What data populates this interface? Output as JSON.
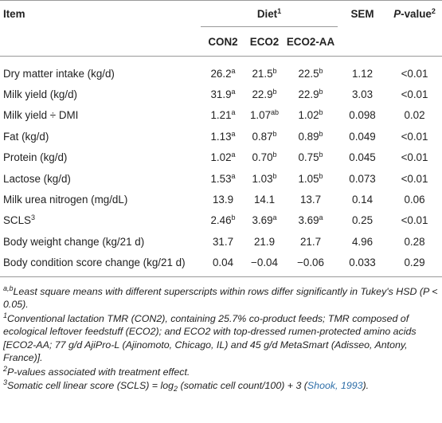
{
  "table": {
    "header": {
      "item": "Item",
      "diet": {
        "text": "Diet",
        "sup": "1"
      },
      "sem": "SEM",
      "pvalue": [
        {
          "text": "P",
          "kind": "italic"
        },
        {
          "text": "-value"
        },
        {
          "text": "2",
          "kind": "sup"
        }
      ],
      "diets": [
        "CON2",
        "ECO2",
        "ECO2-AA"
      ]
    },
    "rows": [
      [
        "Dry matter intake (kg/d)",
        {
          "text": "26.2",
          "sup": "a"
        },
        {
          "text": "21.5",
          "sup": "b"
        },
        {
          "text": "22.5",
          "sup": "b"
        },
        "1.12",
        "<0.01"
      ],
      [
        "Milk yield (kg/d)",
        {
          "text": "31.9",
          "sup": "a"
        },
        {
          "text": "22.9",
          "sup": "b"
        },
        {
          "text": "22.9",
          "sup": "b"
        },
        "3.03",
        "<0.01"
      ],
      [
        "Milk yield ÷ DMI",
        {
          "text": "1.21",
          "sup": "a"
        },
        {
          "text": "1.07",
          "sup": "ab"
        },
        {
          "text": "1.02",
          "sup": "b"
        },
        "0.098",
        "0.02"
      ],
      [
        "Fat (kg/d)",
        {
          "text": "1.13",
          "sup": "a"
        },
        {
          "text": "0.87",
          "sup": "b"
        },
        {
          "text": "0.89",
          "sup": "b"
        },
        "0.049",
        "<0.01"
      ],
      [
        "Protein (kg/d)",
        {
          "text": "1.02",
          "sup": "a"
        },
        {
          "text": "0.70",
          "sup": "b"
        },
        {
          "text": "0.75",
          "sup": "b"
        },
        "0.045",
        "<0.01"
      ],
      [
        "Lactose (kg/d)",
        {
          "text": "1.53",
          "sup": "a"
        },
        {
          "text": "1.03",
          "sup": "b"
        },
        {
          "text": "1.05",
          "sup": "b"
        },
        "0.073",
        "<0.01"
      ],
      [
        "Milk urea nitrogen (mg/dL)",
        "13.9",
        "14.1",
        "13.7",
        "0.14",
        "0.06"
      ],
      [
        {
          "text": "SCLS",
          "sup": "3"
        },
        {
          "text": "2.46",
          "sup": "b"
        },
        {
          "text": "3.69",
          "sup": "a"
        },
        {
          "text": "3.69",
          "sup": "a"
        },
        "0.25",
        "<0.01"
      ],
      [
        "Body weight change (kg/21 d)",
        "31.7",
        "21.9",
        "21.7",
        "4.96",
        "0.28"
      ],
      [
        "Body condition score change (kg/21 d)",
        "0.04",
        "−0.04",
        "−0.06",
        "0.033",
        "0.29"
      ]
    ],
    "footnotes": [
      [
        {
          "text": "a,b",
          "kind": "sup"
        },
        {
          "text": "Least square means with different superscripts within rows differ significantly in Tukey's HSD (P < 0.05)."
        }
      ],
      [
        {
          "text": "1",
          "kind": "sup"
        },
        {
          "text": "Conventional lactation TMR (CON2), containing 25.7% co-product feeds; TMR composed of ecological leftover feedstuff (ECO2); and ECO2 with top-dressed rumen-protected amino acids [ECO2-AA; 77 g/d AjiPro-L (Ajinomoto, Chicago, IL) and 45 g/d MetaSmart (Adisseo, Antony, France)]."
        }
      ],
      [
        {
          "text": "2",
          "kind": "sup"
        },
        {
          "text": "P-values associated with treatment effect."
        }
      ],
      [
        {
          "text": "3",
          "kind": "sup"
        },
        {
          "text": "Somatic cell linear score (SCLS) = log"
        },
        {
          "text": "2",
          "kind": "sub"
        },
        {
          "text": " (somatic cell count/100) + 3 ("
        },
        {
          "text": "Shook, 1993",
          "kind": "link"
        },
        {
          "text": ")."
        }
      ]
    ]
  }
}
